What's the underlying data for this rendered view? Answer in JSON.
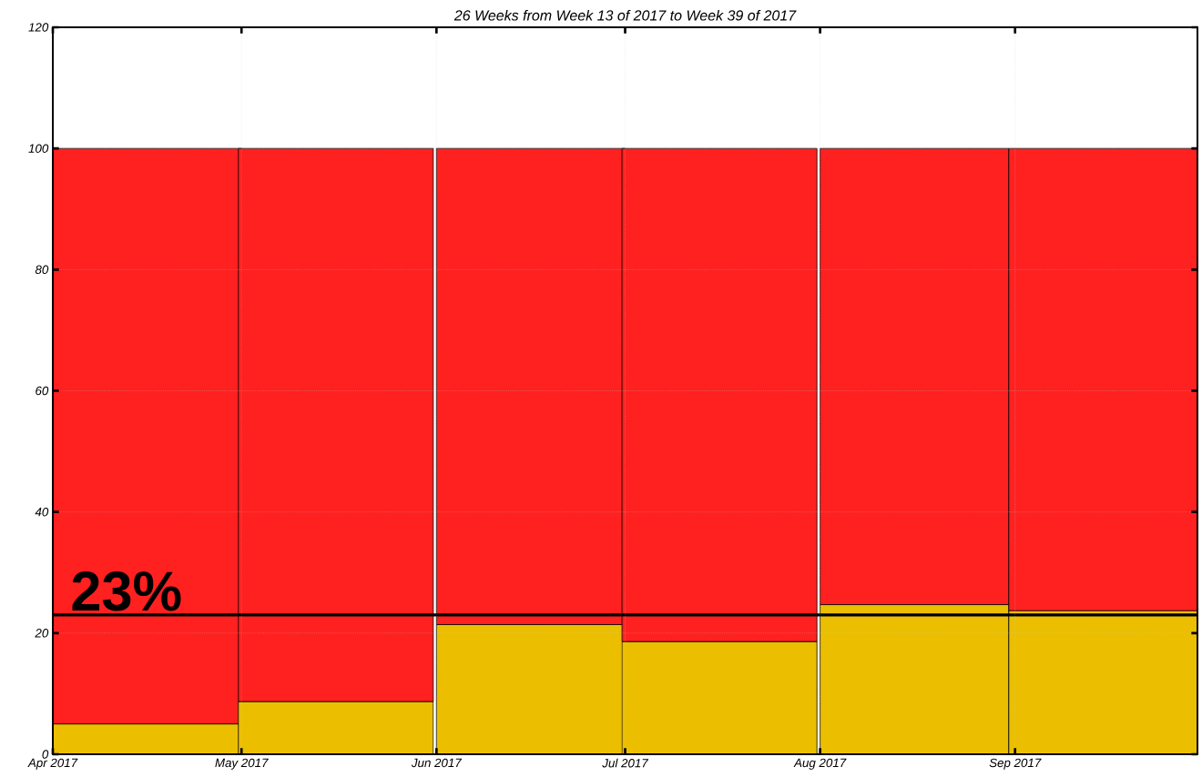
{
  "chart_data": {
    "type": "bar",
    "stacked": true,
    "title": "26 Weeks from Week 13 of 2017 to Week 39 of 2017",
    "x": [
      "2017-04-16",
      "2017-05-16",
      "2017-06-16",
      "2017-07-16",
      "2017-08-16",
      "2017-09-15"
    ],
    "series": [
      {
        "color": "#ebbf00",
        "values": [
          5.0,
          8.7,
          21.4,
          18.6,
          24.7,
          23.7
        ]
      },
      {
        "color": "#ff2020",
        "values": [
          95.0,
          91.3,
          78.6,
          81.4,
          75.3,
          76.3
        ]
      }
    ],
    "xlim": [
      "2017-04-01",
      "2017-09-30"
    ],
    "xticks": [
      {
        "value": "2017-04-01",
        "label": "Apr 2017"
      },
      {
        "value": "2017-05-01",
        "label": "May 2017"
      },
      {
        "value": "2017-06-01",
        "label": "Jun 2017"
      },
      {
        "value": "2017-07-01",
        "label": "Jul 2017"
      },
      {
        "value": "2017-08-01",
        "label": "Aug 2017"
      },
      {
        "value": "2017-09-01",
        "label": "Sep 2017"
      }
    ],
    "ylim": [
      0,
      120
    ],
    "yticks": [
      0,
      20,
      40,
      60,
      80,
      100,
      120
    ],
    "grid": true,
    "ref_lines": [
      {
        "axis": "y",
        "value": 23,
        "label": "23%",
        "color": "#000000"
      }
    ]
  }
}
